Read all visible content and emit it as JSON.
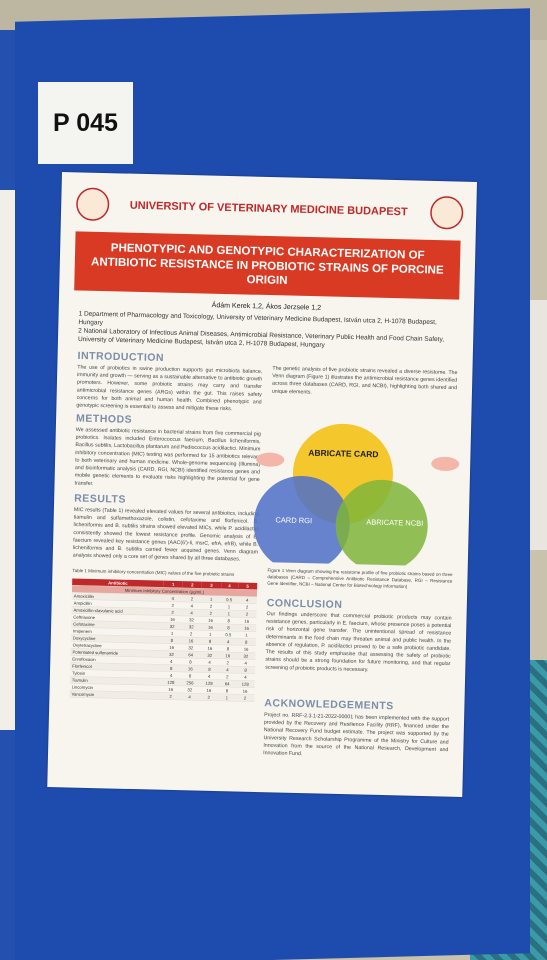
{
  "label": "P 045",
  "poster": {
    "university": "UNIVERSITY OF VETERINARY MEDICINE BUDAPEST",
    "title": "PHENOTYPIC AND GENOTYPIC CHARACTERIZATION OF ANTIBIOTIC RESISTANCE IN PROBIOTIC STRAINS OF PORCINE ORIGIN",
    "authors": "Ádám Kerek 1,2, Ákos Jerzsele 1,2",
    "affiliations": [
      "1 Department of Pharmacology and Toxicology, University of Veterinary Medicine Budapest, István utca 2, H-1078 Budapest, Hungary",
      "2 National Laboratory of Infectious Animal Diseases, Antimicrobial Resistance, Veterinary Public Health and Food Chain Safety, University of Veterinary Medicine Budapest, István utca 2, H-1078 Budapest, Hungary"
    ],
    "introduction": {
      "heading": "INTRODUCTION",
      "text": "The use of probiotics in swine production supports gut microbiota balance, immunity and growth — serving as a sustainable alternative to antibiotic growth promoters. However, some probiotic strains may carry and transfer antimicrobial resistance genes (ARGs) within the gut. This raises safety concerns for both animal and human health. Combined phenotypic and genotypic screening is essential to assess and mitigate these risks."
    },
    "methods": {
      "heading": "METHODS",
      "text": "We assessed antibiotic resistance in bacterial strains from five commercial pig probiotics. Isolates included Enterococcus faecium, Bacillus licheniformis, Bacillus subtilis, Lactobacillus plantarum and Pediococcus acidilactici. Minimum inhibitory concentration (MIC) testing was performed for 15 antibiotics relevant to both veterinary and human medicine. Whole-genome sequencing (Illumina) and bioinformatic analysis (CARD, RGI, NCBI) identified resistance genes and mobile genetic elements to evaluate risks highlighting the potential for gene transfer."
    },
    "results": {
      "heading": "RESULTS",
      "text": "MIC results (Table 1) revealed elevated values for several antibiotics, including tiamulin and sulfamethoxazole, colistin, cefotaxime and florfenicol. B. licheniformis and B. subtilis strains showed elevated MICs, while P. acidilactici consistently showed the lowest resistance profile. Genomic analysis of E. faecium revealed key resistance genes (AAC(6')-Ii, msrC, efrA, efrB), while B. licheniformis and B. subtilis carried fewer acquired genes. Venn diagram analysis showed only a core set of genes shared by all three databases."
    },
    "table": {
      "caption": "Table 1 Minimum inhibitory concentration (MIC) values of the five probiotic strains",
      "header": [
        "Antibiotic",
        "1",
        "2",
        "3",
        "4",
        "5"
      ],
      "subheader": "Minimum Inhibitory Concentration (µg/mL)",
      "rows": [
        [
          "Amoxicillin",
          "4",
          "2",
          "1",
          "0.5",
          "4"
        ],
        [
          "Ampicillin",
          "2",
          "4",
          "2",
          "1",
          "2"
        ],
        [
          "Amoxicillin-clavulanic acid",
          "2",
          "4",
          "2",
          "1",
          "2"
        ],
        [
          "Ceftriaxone",
          "16",
          "32",
          "16",
          "8",
          "16"
        ],
        [
          "Cefotaxime",
          "32",
          "32",
          "16",
          "8",
          "16"
        ],
        [
          "Imipenem",
          "1",
          "2",
          "1",
          "0.5",
          "1"
        ],
        [
          "Doxycycline",
          "8",
          "16",
          "8",
          "4",
          "8"
        ],
        [
          "Oxytetracycline",
          "16",
          "32",
          "16",
          "8",
          "16"
        ],
        [
          "Potentiated sulfonamide",
          "32",
          "64",
          "32",
          "16",
          "32"
        ],
        [
          "Enrofloxacin",
          "4",
          "8",
          "4",
          "2",
          "4"
        ],
        [
          "Florfenicol",
          "8",
          "16",
          "8",
          "4",
          "8"
        ],
        [
          "Tylosin",
          "4",
          "8",
          "4",
          "2",
          "4"
        ],
        [
          "Tiamulin",
          "128",
          "256",
          "128",
          "64",
          "128"
        ],
        [
          "Lincomycin",
          "16",
          "32",
          "16",
          "8",
          "16"
        ],
        [
          "Vancomycin",
          "2",
          "4",
          "2",
          "1",
          "2"
        ]
      ]
    },
    "genetic_text": "The genetic analysis of five probiotic strains revealed a diverse resistome. The Venn diagram (Figure 1) illustrates the antimicrobial resistance genes identified across three databases (CARD, RGI, and NCBI), highlighting both shared and unique elements.",
    "venn": {
      "sets": [
        "ABRICATE CARD",
        "CARD RGI",
        "ABRICATE NCBI"
      ]
    },
    "figure_caption": "Figure 1 Venn diagram showing the resistome profile of five probiotic strains based on three databases (CARD – Comprehensive Antibiotic Resistance Database, RGI – Resistance Gene Identifier, NCBI – National Center for Biotechnology Information)",
    "conclusion": {
      "heading": "CONCLUSION",
      "text": "Our findings underscore that commercial probiotic products may contain resistance genes, particularly in E. faecium, whose presence poses a potential risk of horizontal gene transfer. The unintentional spread of resistance determinants in the food chain may threaten animal and public health. In the absence of regulation, P. acidilactici proved to be a safe probiotic candidate. The results of this study emphasise that assessing the safety of probiotic strains should be a strong foundation for future monitoring, and that regular screening of probiotic products is necessary."
    },
    "acknowledgements": {
      "heading": "ACKNOWLEDGEMENTS",
      "text": "Project no. RRF-2.3.1-21-2022-00001 has been implemented with the support provided by the Recovery and Resilience Facility (RRF), financed under the National Recovery Fund budget estimate. The project was supported by the University Research Scholarship Programme of the Ministry for Culture and Innovation from the source of the National Research, Development and Innovation Fund."
    }
  }
}
